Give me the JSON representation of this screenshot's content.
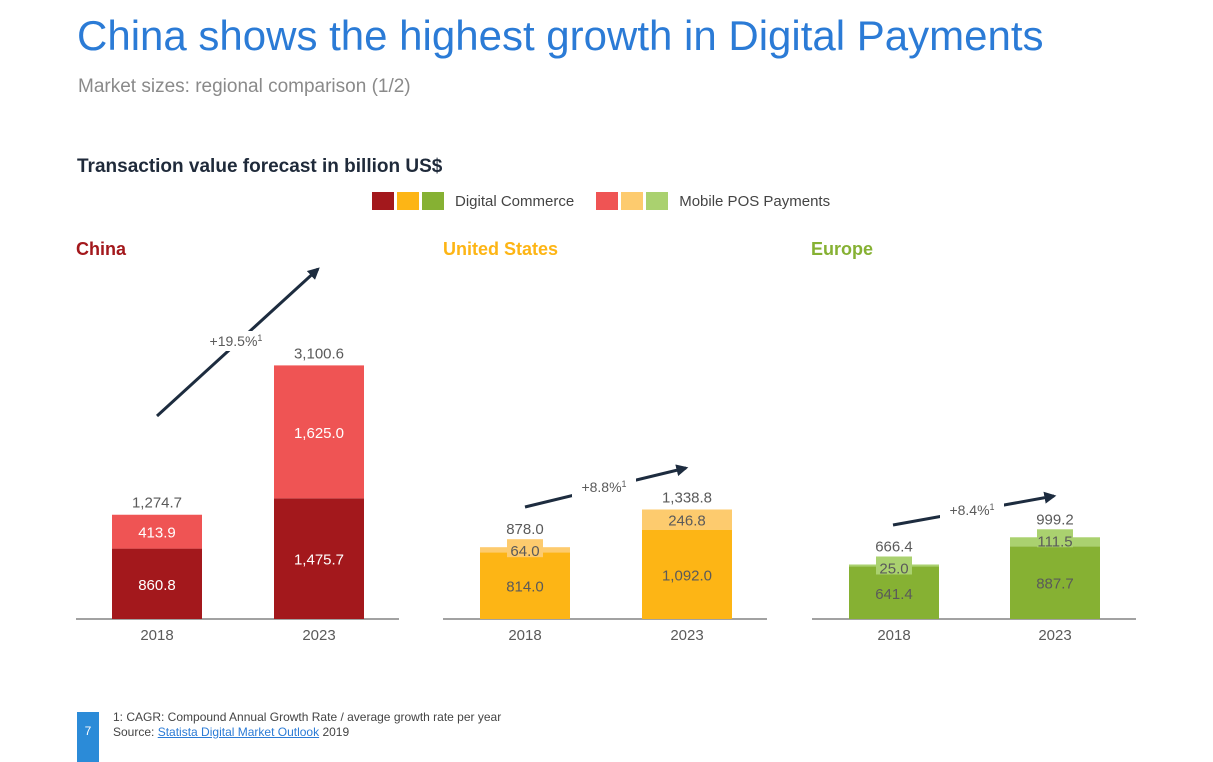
{
  "title": "China shows the highest growth in Digital Payments",
  "subtitle": "Market sizes: regional comparison (1/2)",
  "chart_heading": "Transaction value forecast in billion US$",
  "legend": {
    "digital_commerce": "Digital Commerce",
    "mobile_pos": "Mobile POS Payments"
  },
  "colors": {
    "china_dc": "#a3181c",
    "china_mpos": "#ef5454",
    "us_dc": "#fdb515",
    "us_mpos": "#fdcb6e",
    "eu_dc": "#86b133",
    "eu_mpos": "#aad16f",
    "arrow": "#1d2c3f"
  },
  "chart_data": {
    "type": "bar",
    "stacked": true,
    "ylim": [
      0,
      3500
    ],
    "categories": [
      "2018",
      "2023"
    ],
    "panels": [
      {
        "region": "China",
        "title_color": "#a3181c",
        "digital_commerce": [
          860.8,
          1475.7
        ],
        "mobile_pos": [
          413.9,
          1625.0
        ],
        "total_labels": [
          "1,274.7",
          "3,100.6"
        ],
        "dc_labels": [
          "860.8",
          "1,475.7"
        ],
        "mpos_labels": [
          "413.9",
          "1,625.0"
        ],
        "cagr": "+19.5%",
        "cagr_sup": "1"
      },
      {
        "region": "United States",
        "title_color": "#fdb515",
        "digital_commerce": [
          814.0,
          1092.0
        ],
        "mobile_pos": [
          64.0,
          246.8
        ],
        "total_labels": [
          "878.0",
          "1,338.8"
        ],
        "dc_labels": [
          "814.0",
          "1,092.0"
        ],
        "mpos_labels": [
          "64.0",
          "246.8"
        ],
        "cagr": "+8.8%",
        "cagr_sup": "1"
      },
      {
        "region": "Europe",
        "title_color": "#86b133",
        "digital_commerce": [
          641.4,
          887.7
        ],
        "mobile_pos": [
          25.0,
          111.5
        ],
        "total_labels": [
          "666.4",
          "999.2"
        ],
        "dc_labels": [
          "641.4",
          "887.7"
        ],
        "mpos_labels": [
          "25.0",
          "111.5"
        ],
        "cagr": "+8.4%",
        "cagr_sup": "1"
      }
    ]
  },
  "footnote": {
    "line1": "1: CAGR: Compound Annual Growth Rate / average growth rate per year",
    "source_prefix": "Source: ",
    "source_link": "Statista Digital Market Outlook",
    "source_year": " 2019"
  },
  "page_number": "7"
}
